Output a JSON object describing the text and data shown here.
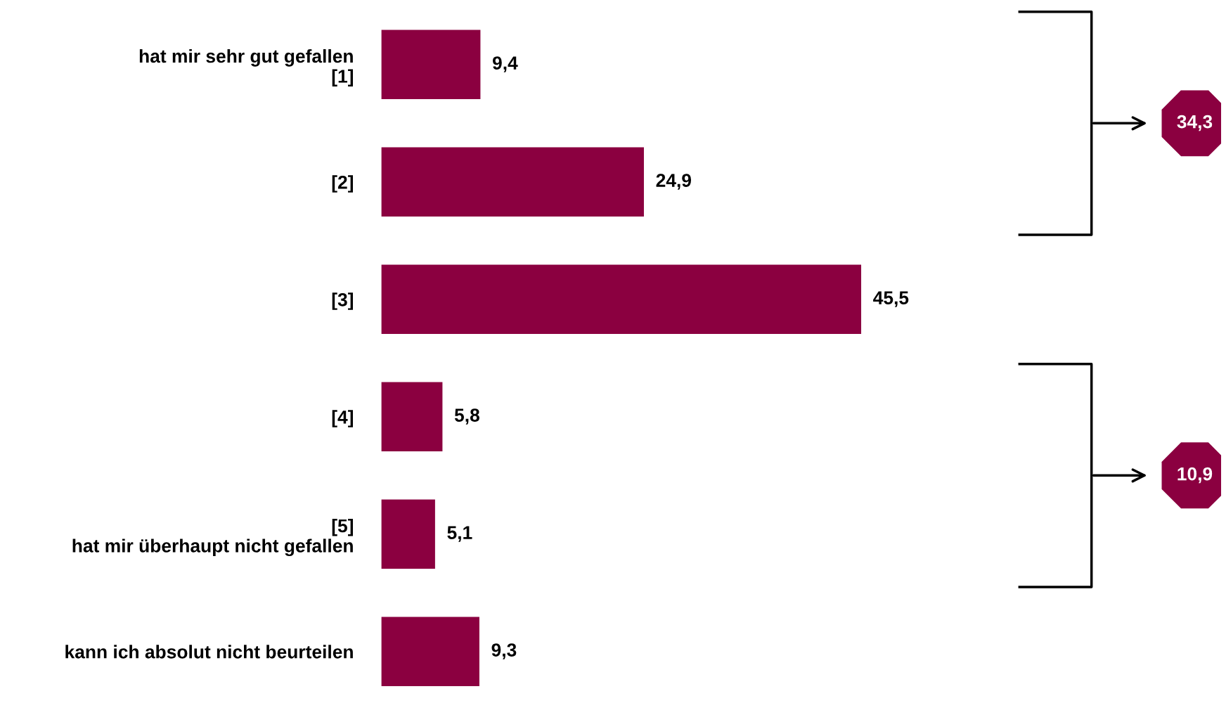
{
  "chart_data": {
    "type": "bar",
    "orientation": "horizontal",
    "categories": [
      "hat mir sehr gut gefallen\n[1]",
      "[2]",
      "[3]",
      "[4]",
      "[5]\nhat mir überhaupt nicht gefallen",
      "kann ich absolut nicht beurteilen"
    ],
    "values": [
      9.4,
      24.9,
      45.5,
      5.8,
      5.1,
      9.3
    ],
    "value_labels": [
      "9,4",
      "24,9",
      "45,5",
      "5,8",
      "5,1",
      "9,3"
    ],
    "color": "#8b0040",
    "annotations": [
      "34,3",
      "10,9"
    ],
    "grid": false,
    "legend": false
  }
}
